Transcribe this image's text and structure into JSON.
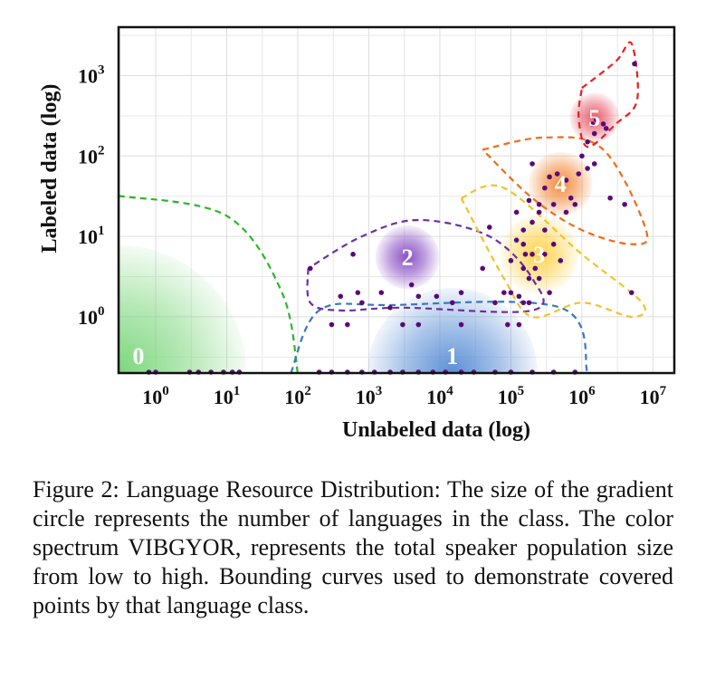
{
  "chart_data": {
    "type": "scatter",
    "xlabel": "Unlabeled data (log)",
    "ylabel": "Labeled data (log)",
    "x_scale": "log",
    "y_scale": "log",
    "xlim": [
      0.3,
      20000000
    ],
    "ylim": [
      0.2,
      4000
    ],
    "grid": true,
    "x_ticks": [
      {
        "exp": 0,
        "base": "10",
        "sup": "0"
      },
      {
        "exp": 1,
        "base": "10",
        "sup": "1"
      },
      {
        "exp": 2,
        "base": "10",
        "sup": "2"
      },
      {
        "exp": 3,
        "base": "10",
        "sup": "3"
      },
      {
        "exp": 4,
        "base": "10",
        "sup": "4"
      },
      {
        "exp": 5,
        "base": "10",
        "sup": "5"
      },
      {
        "exp": 6,
        "base": "10",
        "sup": "6"
      },
      {
        "exp": 7,
        "base": "10",
        "sup": "7"
      }
    ],
    "y_ticks": [
      {
        "exp": 0,
        "base": "10",
        "sup": "0"
      },
      {
        "exp": 1,
        "base": "10",
        "sup": "1"
      },
      {
        "exp": 2,
        "base": "10",
        "sup": "2"
      },
      {
        "exp": 3,
        "base": "10",
        "sup": "3"
      }
    ],
    "classes": [
      {
        "label": "0",
        "color": "#7cd67c",
        "center": [
          0.3,
          0.2
        ],
        "spread": 1.8
      },
      {
        "label": "1",
        "color": "#5b8fd6",
        "center": [
          15000,
          0.2
        ],
        "spread": 1.2
      },
      {
        "label": "2",
        "color": "#8a4fc4",
        "center": [
          3500,
          5.5
        ],
        "spread": 0.45
      },
      {
        "label": "3",
        "color": "#ffd24a",
        "center": [
          250000,
          6
        ],
        "spread": 0.55
      },
      {
        "label": "4",
        "color": "#f28a3a",
        "center": [
          500000,
          45
        ],
        "spread": 0.45
      },
      {
        "label": "5",
        "color": "#e85a6a",
        "center": [
          1500000,
          300
        ],
        "spread": 0.35
      }
    ],
    "boundaries": [
      {
        "label": "0",
        "color": "#2bb52b",
        "points": [
          [
            0.3,
            32
          ],
          [
            10,
            18
          ],
          [
            60,
            2
          ],
          [
            100,
            0.2
          ]
        ]
      },
      {
        "label": "1",
        "color": "#3a78c0",
        "points": [
          [
            80,
            0.2
          ],
          [
            200,
            1.2
          ],
          [
            2000,
            1.4
          ],
          [
            500000,
            1.3
          ],
          [
            1200000,
            0.2
          ]
        ]
      },
      {
        "label": "2",
        "color": "#6b2fa3",
        "points": [
          [
            140,
            4
          ],
          [
            150,
            1.5
          ],
          [
            400,
            1.2
          ],
          [
            3000,
            1.3
          ],
          [
            200000,
            1.2
          ],
          [
            200000,
            3
          ],
          [
            50000,
            10
          ],
          [
            5000,
            16
          ],
          [
            800,
            10
          ],
          [
            140,
            4
          ]
        ]
      },
      {
        "label": "3",
        "color": "#f2c22b",
        "points": [
          [
            20000,
            30
          ],
          [
            80000,
            40
          ],
          [
            1000000,
            6
          ],
          [
            7000000,
            1.5
          ],
          [
            5000000,
            1
          ],
          [
            1000000,
            1.5
          ],
          [
            200000,
            1
          ],
          [
            80000,
            3
          ],
          [
            20000,
            30
          ]
        ]
      },
      {
        "label": "4",
        "color": "#f06b1a",
        "points": [
          [
            40000,
            120
          ],
          [
            300000,
            170
          ],
          [
            2000000,
            120
          ],
          [
            8000000,
            12
          ],
          [
            5000000,
            8
          ],
          [
            1000000,
            12
          ],
          [
            200000,
            30
          ],
          [
            40000,
            120
          ]
        ]
      },
      {
        "label": "5",
        "color": "#e82020",
        "points": [
          [
            1000000,
            700
          ],
          [
            3000000,
            1500
          ],
          [
            5000000,
            2500
          ],
          [
            6000000,
            500
          ],
          [
            3000000,
            250
          ],
          [
            1200000,
            130
          ],
          [
            900000,
            300
          ],
          [
            1000000,
            700
          ]
        ]
      }
    ],
    "points": [
      [
        0.8,
        0.2
      ],
      [
        1,
        0.2
      ],
      [
        3,
        0.2
      ],
      [
        4,
        0.2
      ],
      [
        6,
        0.2
      ],
      [
        9,
        0.2
      ],
      [
        12,
        0.2
      ],
      [
        15,
        0.2
      ],
      [
        200,
        0.2
      ],
      [
        300,
        0.2
      ],
      [
        500,
        0.2
      ],
      [
        800,
        0.2
      ],
      [
        1200,
        0.2
      ],
      [
        2000,
        0.2
      ],
      [
        3000,
        0.2
      ],
      [
        5000,
        0.2
      ],
      [
        8000,
        0.2
      ],
      [
        12000,
        0.2
      ],
      [
        20000,
        0.2
      ],
      [
        30000,
        0.2
      ],
      [
        60000,
        0.2
      ],
      [
        100000,
        0.2
      ],
      [
        200000,
        0.2
      ],
      [
        400000,
        0.2
      ],
      [
        800000,
        0.2
      ],
      [
        300,
        0.8
      ],
      [
        500,
        0.8
      ],
      [
        3000,
        0.8
      ],
      [
        5000,
        0.8
      ],
      [
        20000,
        0.8
      ],
      [
        90000,
        0.8
      ],
      [
        130000,
        0.8
      ],
      [
        150,
        4
      ],
      [
        400,
        1.8
      ],
      [
        600,
        6
      ],
      [
        700,
        2
      ],
      [
        800,
        1.5
      ],
      [
        1500,
        2
      ],
      [
        2000,
        1.3
      ],
      [
        4000,
        2.5
      ],
      [
        5000,
        1.8
      ],
      [
        9000,
        1.8
      ],
      [
        15000,
        1.5
      ],
      [
        20000,
        2
      ],
      [
        40000,
        4
      ],
      [
        60000,
        1.5
      ],
      [
        80000,
        2
      ],
      [
        100000,
        2
      ],
      [
        130000,
        1.8
      ],
      [
        150000,
        1.5
      ],
      [
        180000,
        1.5
      ],
      [
        100000,
        5
      ],
      [
        120000,
        9
      ],
      [
        50000,
        13
      ],
      [
        150000,
        12
      ],
      [
        200000,
        15
      ],
      [
        120000,
        20
      ],
      [
        180000,
        28
      ],
      [
        250000,
        20
      ],
      [
        150000,
        8
      ],
      [
        160000,
        6
      ],
      [
        200000,
        6
      ],
      [
        220000,
        4
      ],
      [
        250000,
        3
      ],
      [
        300000,
        6
      ],
      [
        150000,
        4
      ],
      [
        180000,
        3
      ],
      [
        350000,
        2
      ],
      [
        400000,
        8
      ],
      [
        500000,
        5
      ],
      [
        300000,
        12
      ],
      [
        250000,
        25
      ],
      [
        400000,
        25
      ],
      [
        600000,
        20
      ],
      [
        700000,
        30
      ],
      [
        800000,
        25
      ],
      [
        300000,
        40
      ],
      [
        350000,
        55
      ],
      [
        450000,
        60
      ],
      [
        600000,
        50
      ],
      [
        900000,
        60
      ],
      [
        1200000,
        70
      ],
      [
        1500000,
        80
      ],
      [
        2500000,
        30
      ],
      [
        4000000,
        25
      ],
      [
        5000000,
        2
      ],
      [
        200000,
        80
      ],
      [
        1000000,
        100
      ],
      [
        1200000,
        150
      ],
      [
        1400000,
        250
      ],
      [
        1600000,
        280
      ],
      [
        2000000,
        250
      ],
      [
        2200000,
        220
      ],
      [
        1500000,
        190
      ],
      [
        5500000,
        1400
      ]
    ]
  },
  "caption": "Figure 2: Language Resource Distribution: The size of the gradient circle represents the number of languages in the class.  The color spectrum VIBGYOR, represents the total speaker population size from low to high. Bounding curves used to demonstrate covered points by that language class."
}
